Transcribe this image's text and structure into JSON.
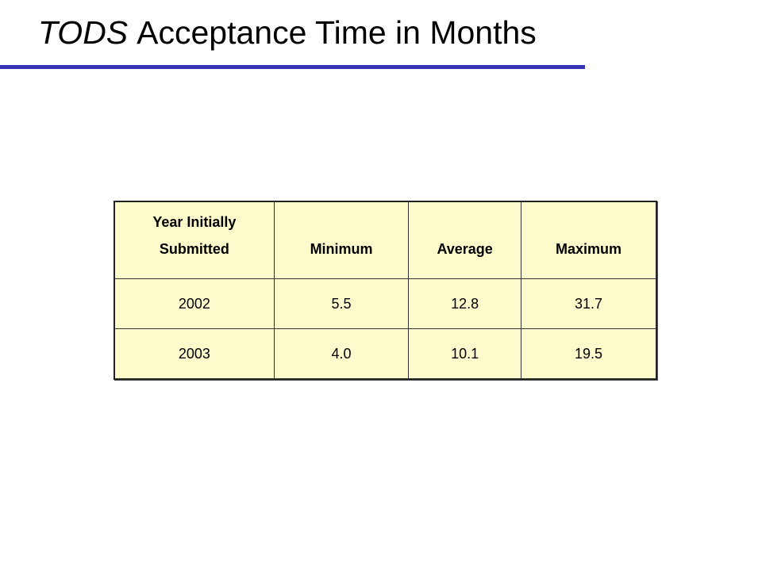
{
  "title": {
    "emphasis": "TODS",
    "rest": "Acceptance Time in Months"
  },
  "table": {
    "header": [
      "Year Initially Submitted",
      "Minimum",
      "Average",
      "Maximum"
    ],
    "rows": [
      [
        "2002",
        "5.5",
        "12.8",
        "31.7"
      ],
      [
        "2003",
        "4.0",
        "10.1",
        "19.5"
      ]
    ]
  }
}
